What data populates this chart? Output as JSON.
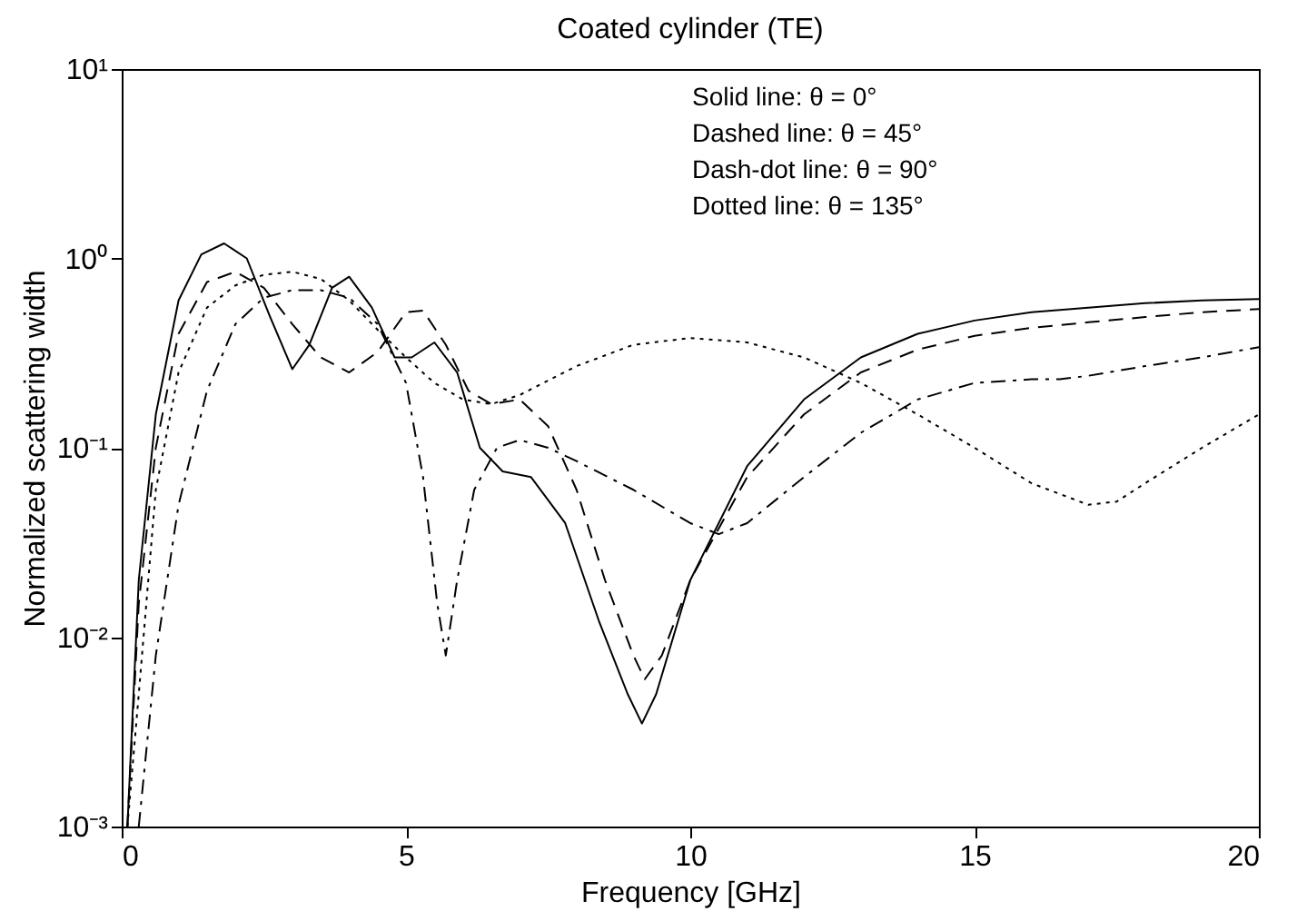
{
  "chart_data": {
    "type": "line",
    "title": "Coated cylinder (TE)",
    "xlabel": "Frequency [GHz]",
    "ylabel": "Normalized scattering width",
    "annotations": [
      "Solid line: θ = 0°",
      "Dashed line: θ = 45°",
      "Dash-dot line: θ = 90°",
      "Dotted line: θ = 135°"
    ],
    "log": "y",
    "grid": false,
    "xlim": [
      0,
      20
    ],
    "xticks": [
      0,
      5,
      10,
      15,
      20
    ],
    "ylim": [
      0.001,
      10
    ],
    "yticks": [
      {
        "value": 0.001,
        "label": "10⁻³"
      },
      {
        "value": 0.01,
        "label": "10⁻²"
      },
      {
        "value": 0.1,
        "label": "10⁻¹"
      },
      {
        "value": 1,
        "label": "10⁰"
      },
      {
        "value": 10,
        "label": "10¹"
      }
    ],
    "series": [
      {
        "color": "#000000",
        "line_style": "solid",
        "x": [
          0.1,
          0.3,
          0.6,
          1.0,
          1.4,
          1.8,
          2.2,
          2.6,
          3.0,
          3.3,
          3.7,
          4.0,
          4.4,
          4.8,
          5.1,
          5.5,
          5.9,
          6.3,
          6.7,
          7.2,
          7.8,
          8.4,
          8.9,
          9.15,
          9.4,
          10,
          11,
          12,
          13,
          14,
          15,
          16,
          17,
          18,
          19,
          20
        ],
        "values": [
          0.001,
          0.02,
          0.15,
          0.6,
          1.05,
          1.2,
          1.0,
          0.5,
          0.26,
          0.35,
          0.7,
          0.8,
          0.55,
          0.3,
          0.3,
          0.36,
          0.25,
          0.1,
          0.075,
          0.07,
          0.04,
          0.012,
          0.005,
          0.0035,
          0.005,
          0.02,
          0.08,
          0.18,
          0.3,
          0.4,
          0.47,
          0.52,
          0.55,
          0.58,
          0.6,
          0.61
        ]
      },
      {
        "color": "#000000",
        "line_style": "dashed",
        "x": [
          0.1,
          0.3,
          0.6,
          1.0,
          1.5,
          2.0,
          2.5,
          3.0,
          3.5,
          4.0,
          4.5,
          5.0,
          5.3,
          5.7,
          6.1,
          6.5,
          7.0,
          7.5,
          8.0,
          8.5,
          9.0,
          9.2,
          9.5,
          10,
          11,
          12,
          13,
          14,
          15,
          16,
          17,
          18,
          19,
          20
        ],
        "values": [
          0.001,
          0.015,
          0.1,
          0.4,
          0.75,
          0.85,
          0.7,
          0.45,
          0.3,
          0.25,
          0.32,
          0.52,
          0.53,
          0.35,
          0.2,
          0.17,
          0.18,
          0.13,
          0.06,
          0.02,
          0.008,
          0.006,
          0.008,
          0.02,
          0.07,
          0.15,
          0.25,
          0.33,
          0.39,
          0.43,
          0.46,
          0.49,
          0.52,
          0.54
        ]
      },
      {
        "color": "#000000",
        "line_style": "dashdot",
        "x": [
          0.3,
          0.6,
          1.0,
          1.5,
          2.0,
          2.5,
          3.0,
          3.5,
          4.0,
          4.5,
          5.0,
          5.3,
          5.55,
          5.7,
          5.9,
          6.2,
          6.6,
          7.0,
          7.5,
          8.0,
          9.0,
          10,
          10.5,
          11,
          12,
          13,
          14,
          15,
          16,
          16.5,
          17,
          18,
          19,
          20
        ],
        "values": [
          0.001,
          0.008,
          0.05,
          0.2,
          0.45,
          0.62,
          0.68,
          0.68,
          0.62,
          0.45,
          0.22,
          0.07,
          0.015,
          0.008,
          0.02,
          0.06,
          0.1,
          0.11,
          0.1,
          0.085,
          0.06,
          0.04,
          0.035,
          0.04,
          0.07,
          0.12,
          0.18,
          0.22,
          0.23,
          0.23,
          0.24,
          0.27,
          0.3,
          0.34
        ]
      },
      {
        "color": "#000000",
        "line_style": "dotted",
        "x": [
          0.1,
          0.3,
          0.6,
          1.0,
          1.5,
          2.0,
          2.5,
          3.0,
          3.5,
          4.0,
          4.5,
          5.0,
          5.5,
          6.0,
          6.5,
          7.0,
          8.0,
          9.0,
          10,
          11,
          12,
          13,
          14,
          15,
          16,
          17,
          17.5,
          18,
          19,
          20
        ],
        "values": [
          0.001,
          0.005,
          0.06,
          0.25,
          0.55,
          0.72,
          0.82,
          0.85,
          0.78,
          0.6,
          0.42,
          0.3,
          0.22,
          0.18,
          0.17,
          0.19,
          0.27,
          0.35,
          0.38,
          0.36,
          0.3,
          0.22,
          0.15,
          0.1,
          0.065,
          0.05,
          0.052,
          0.065,
          0.1,
          0.15
        ]
      }
    ]
  }
}
